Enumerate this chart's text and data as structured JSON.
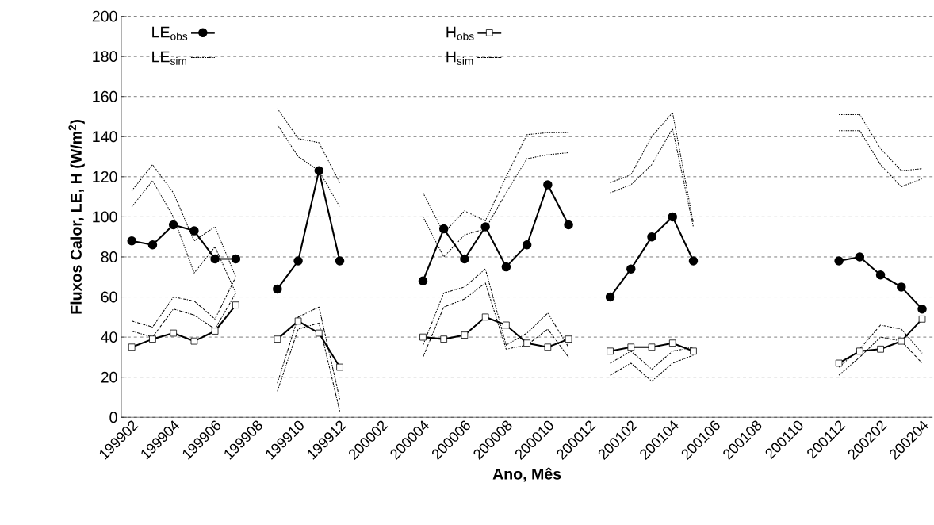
{
  "chart_data": {
    "type": "line",
    "categories": [
      "199902",
      null,
      "199904",
      null,
      "199906",
      null,
      "199908",
      null,
      "199910",
      null,
      "199912",
      null,
      "200002",
      null,
      "200004",
      null,
      "200006",
      null,
      "200008",
      null,
      "200010",
      null,
      "200012",
      null,
      "200102",
      null,
      "200104",
      null,
      "200106",
      null,
      "200108",
      null,
      "200110",
      null,
      "200112",
      null,
      "200202",
      null,
      "200204"
    ],
    "xlabel": "Ano, Mês",
    "ylabel": "Fluxos Calor, LE, H (W/m$^{2}$)",
    "ylim": [
      0,
      200
    ],
    "yticks": [
      0,
      20,
      40,
      60,
      80,
      100,
      120,
      140,
      160,
      180,
      200
    ],
    "grid": "y",
    "legend": "top",
    "series": [
      {
        "name": "LE$_{obs}$",
        "color": "#000000",
        "marker": "circle",
        "line_style": "solid",
        "values": [
          88,
          86,
          96,
          93,
          79,
          79,
          null,
          64,
          78,
          123,
          78,
          null,
          null,
          null,
          68,
          94,
          79,
          95,
          75,
          86,
          116,
          96,
          null,
          60,
          74,
          90,
          100,
          78,
          null,
          null,
          null,
          null,
          null,
          null,
          78,
          80,
          71,
          65,
          54
        ]
      },
      {
        "name": "H$_{obs}$",
        "color": "#000000",
        "marker": "square",
        "line_style": "solid",
        "values": [
          35,
          39,
          42,
          38,
          43,
          56,
          null,
          39,
          48,
          42,
          25,
          null,
          null,
          null,
          40,
          39,
          41,
          50,
          46,
          37,
          35,
          39,
          null,
          33,
          35,
          35,
          37,
          33,
          null,
          null,
          null,
          null,
          null,
          null,
          27,
          33,
          34,
          38,
          49
        ]
      },
      {
        "name": "LE$_{sim}$",
        "color": "#000000",
        "marker": "none",
        "line_style": "dotted",
        "values": [
          113,
          126,
          112,
          88,
          95,
          70,
          null,
          154,
          139,
          137,
          117,
          null,
          null,
          null,
          112,
          92,
          103,
          98,
          120,
          141,
          142,
          142,
          null,
          117,
          121,
          140,
          152,
          97,
          null,
          null,
          null,
          null,
          null,
          null,
          151,
          151,
          134,
          123,
          124
        ]
      },
      {
        "name": "H$_{sim}$",
        "color": "#000000",
        "marker": "none",
        "line_style": "dashed",
        "values": [
          48,
          45,
          60,
          58,
          49,
          70,
          null,
          17,
          50,
          55,
          9,
          null,
          null,
          null,
          36,
          62,
          65,
          74,
          36,
          42,
          52,
          35,
          null,
          27,
          33,
          24,
          33,
          35,
          null,
          null,
          null,
          null,
          null,
          null,
          25,
          34,
          46,
          44,
          32
        ]
      },
      {
        "color": "#000000",
        "marker": "none",
        "line_style": "dotted",
        "values": [
          105,
          118,
          100,
          72,
          85,
          62,
          null,
          146,
          130,
          123,
          105,
          null,
          null,
          null,
          100,
          80,
          91,
          94,
          112,
          129,
          131,
          132,
          null,
          112,
          116,
          126,
          144,
          95,
          null,
          null,
          null,
          null,
          null,
          null,
          143,
          143,
          126,
          115,
          119
        ]
      },
      {
        "color": "#000000",
        "marker": "none",
        "line_style": "dashed",
        "values": [
          43,
          40,
          54,
          51,
          44,
          62,
          null,
          13,
          44,
          47,
          3,
          null,
          null,
          null,
          30,
          55,
          59,
          67,
          34,
          36,
          44,
          30,
          null,
          21,
          27,
          18,
          27,
          31,
          null,
          null,
          null,
          null,
          null,
          null,
          21,
          30,
          40,
          38,
          27
        ]
      }
    ]
  }
}
